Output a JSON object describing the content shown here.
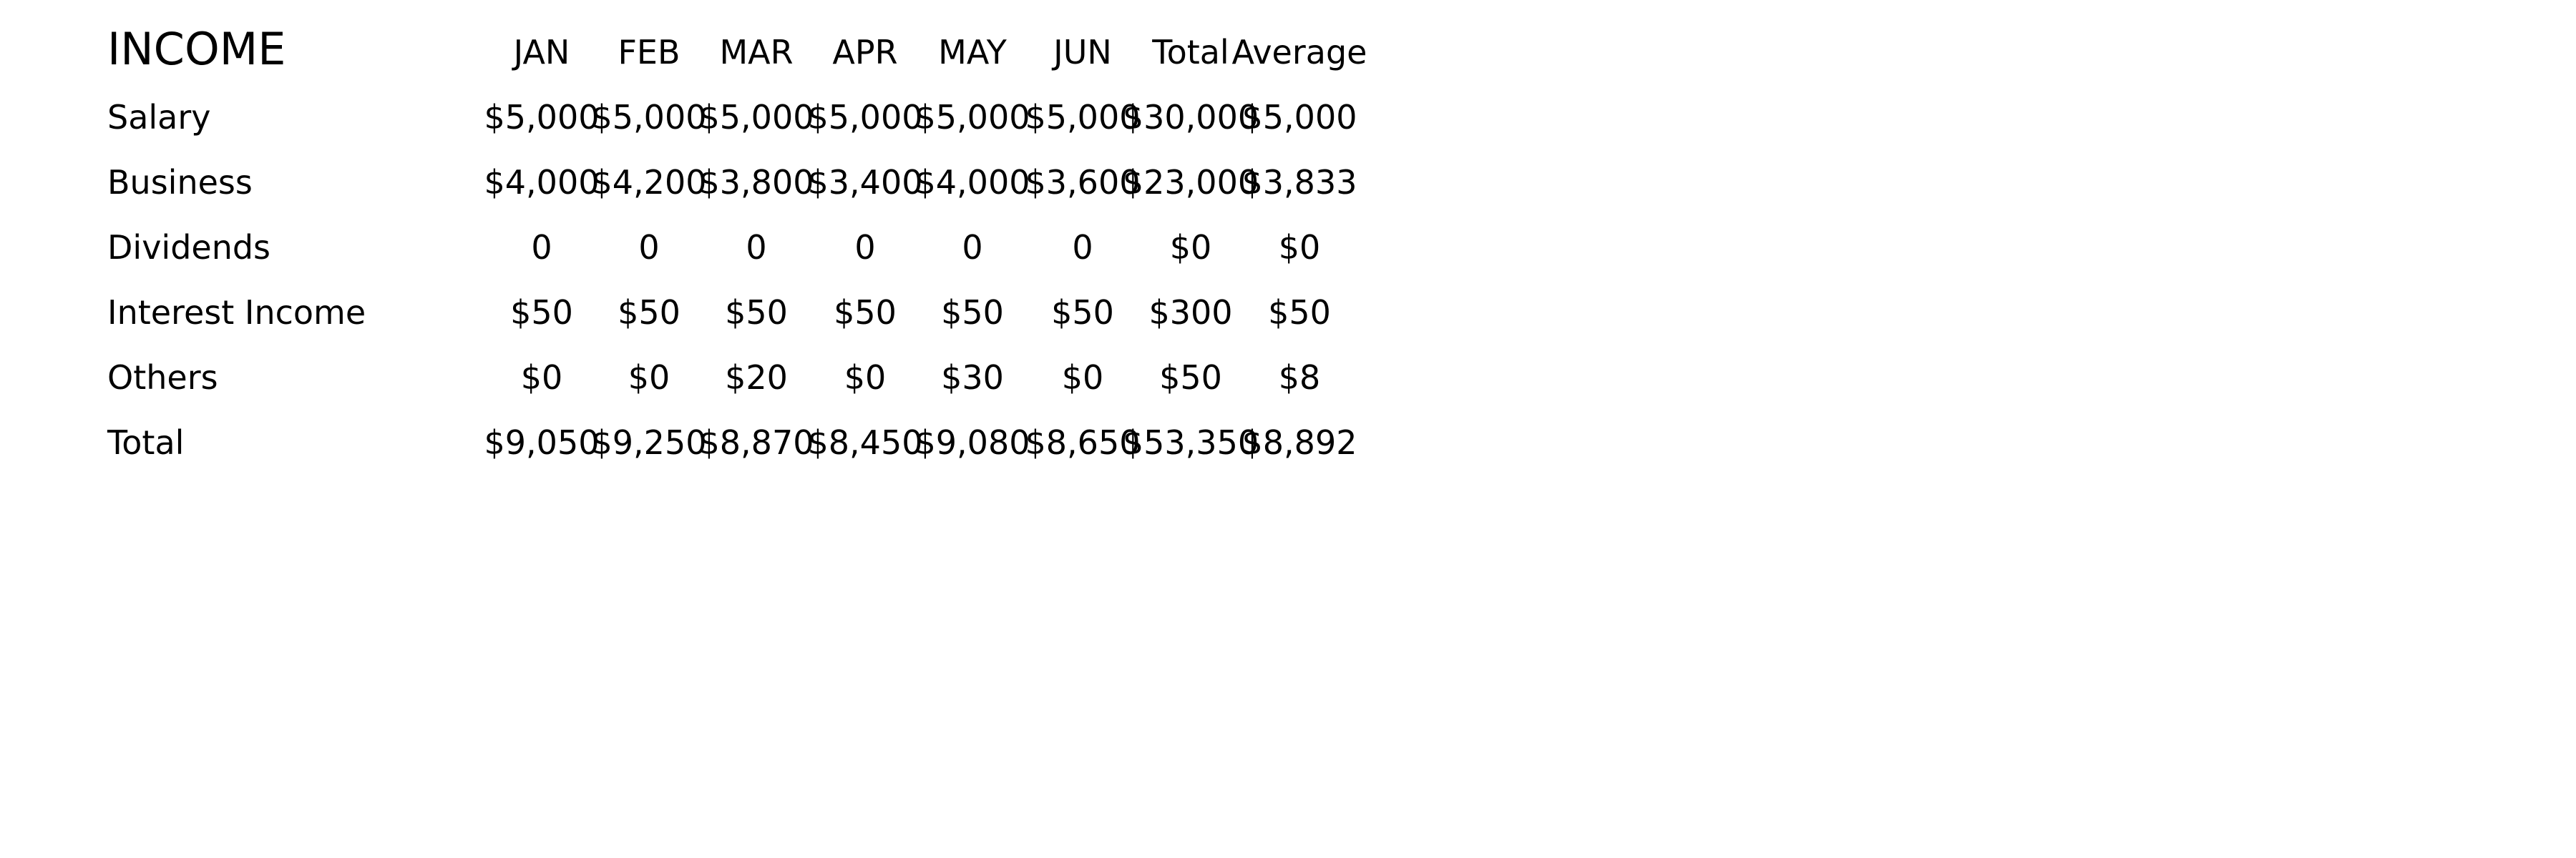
{
  "table": {
    "title": "INCOME",
    "columns": [
      "JAN",
      "FEB",
      "MAR",
      "APR",
      "MAY",
      "JUN",
      "Total",
      "Average"
    ],
    "rows": [
      {
        "label": "Salary",
        "values": [
          "$5,000",
          "$5,000",
          "$5,000",
          "$5,000",
          "$5,000",
          "$5,000",
          "$30,000",
          "$5,000"
        ]
      },
      {
        "label": "Business",
        "values": [
          "$4,000",
          "$4,200",
          "$3,800",
          "$3,400",
          "$4,000",
          "$3,600",
          "$23,000",
          "$3,833"
        ]
      },
      {
        "label": "Dividends",
        "values": [
          "0",
          "0",
          "0",
          "0",
          "0",
          "0",
          "$0",
          "$0"
        ]
      },
      {
        "label": "Interest Income",
        "values": [
          "$50",
          "$50",
          "$50",
          "$50",
          "$50",
          "$50",
          "$300",
          "$50"
        ]
      },
      {
        "label": "Others",
        "values": [
          "$0",
          "$0",
          "$20",
          "$0",
          "$30",
          "$0",
          "$50",
          "$8"
        ]
      },
      {
        "label": "Total",
        "values": [
          "$9,050",
          "$9,250",
          "$8,870",
          "$8,450",
          "$9,080",
          "$8,650",
          "$53,350",
          "$8,892"
        ]
      }
    ]
  }
}
